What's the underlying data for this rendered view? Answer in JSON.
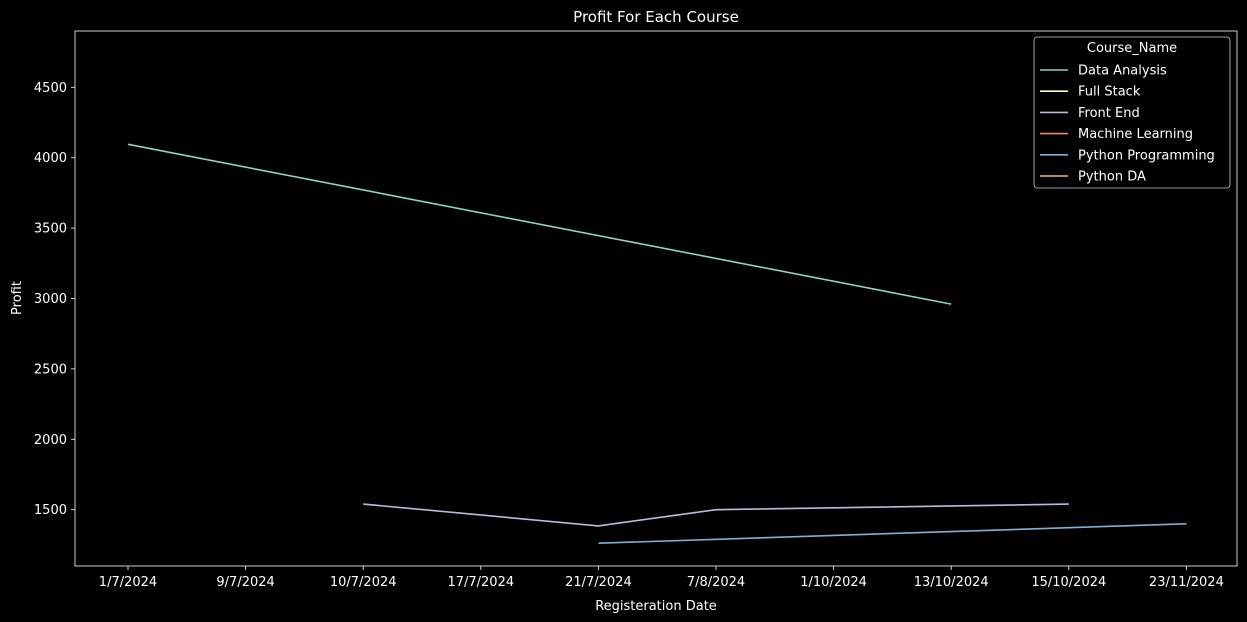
{
  "chart_data": {
    "type": "line",
    "title": "Profit For Each Course",
    "xlabel": "Registeration Date",
    "ylabel": "Profit",
    "categories": [
      "1/7/2024",
      "9/7/2024",
      "10/7/2024",
      "17/7/2024",
      "21/7/2024",
      "7/8/2024",
      "1/10/2024",
      "13/10/2024",
      "15/10/2024",
      "23/11/2024"
    ],
    "yticks": [
      1500,
      2000,
      2500,
      3000,
      3500,
      4000,
      4500
    ],
    "ylim": [
      1100,
      4900
    ],
    "grid": false,
    "legend_title": "Course_Name",
    "legend_position": "top-right",
    "series": [
      {
        "name": "Data Analysis",
        "color": "#8dd3c7",
        "points": [
          [
            "1/7/2024",
            4095
          ],
          [
            "13/10/2024",
            2960
          ]
        ]
      },
      {
        "name": "Full Stack",
        "color": "#ffffb3",
        "points": []
      },
      {
        "name": "Front End",
        "color": "#bebada",
        "points": [
          [
            "10/7/2024",
            1540
          ],
          [
            "21/7/2024",
            1385
          ],
          [
            "7/8/2024",
            1500
          ],
          [
            "15/10/2024",
            1540
          ]
        ]
      },
      {
        "name": "Machine Learning",
        "color": "#fa8072",
        "points": []
      },
      {
        "name": "Python Programming",
        "color": "#80b1d3",
        "points": [
          [
            "21/7/2024",
            1262
          ],
          [
            "23/11/2024",
            1400
          ]
        ]
      },
      {
        "name": "Python DA",
        "color": "#fdb462",
        "points": []
      }
    ]
  }
}
